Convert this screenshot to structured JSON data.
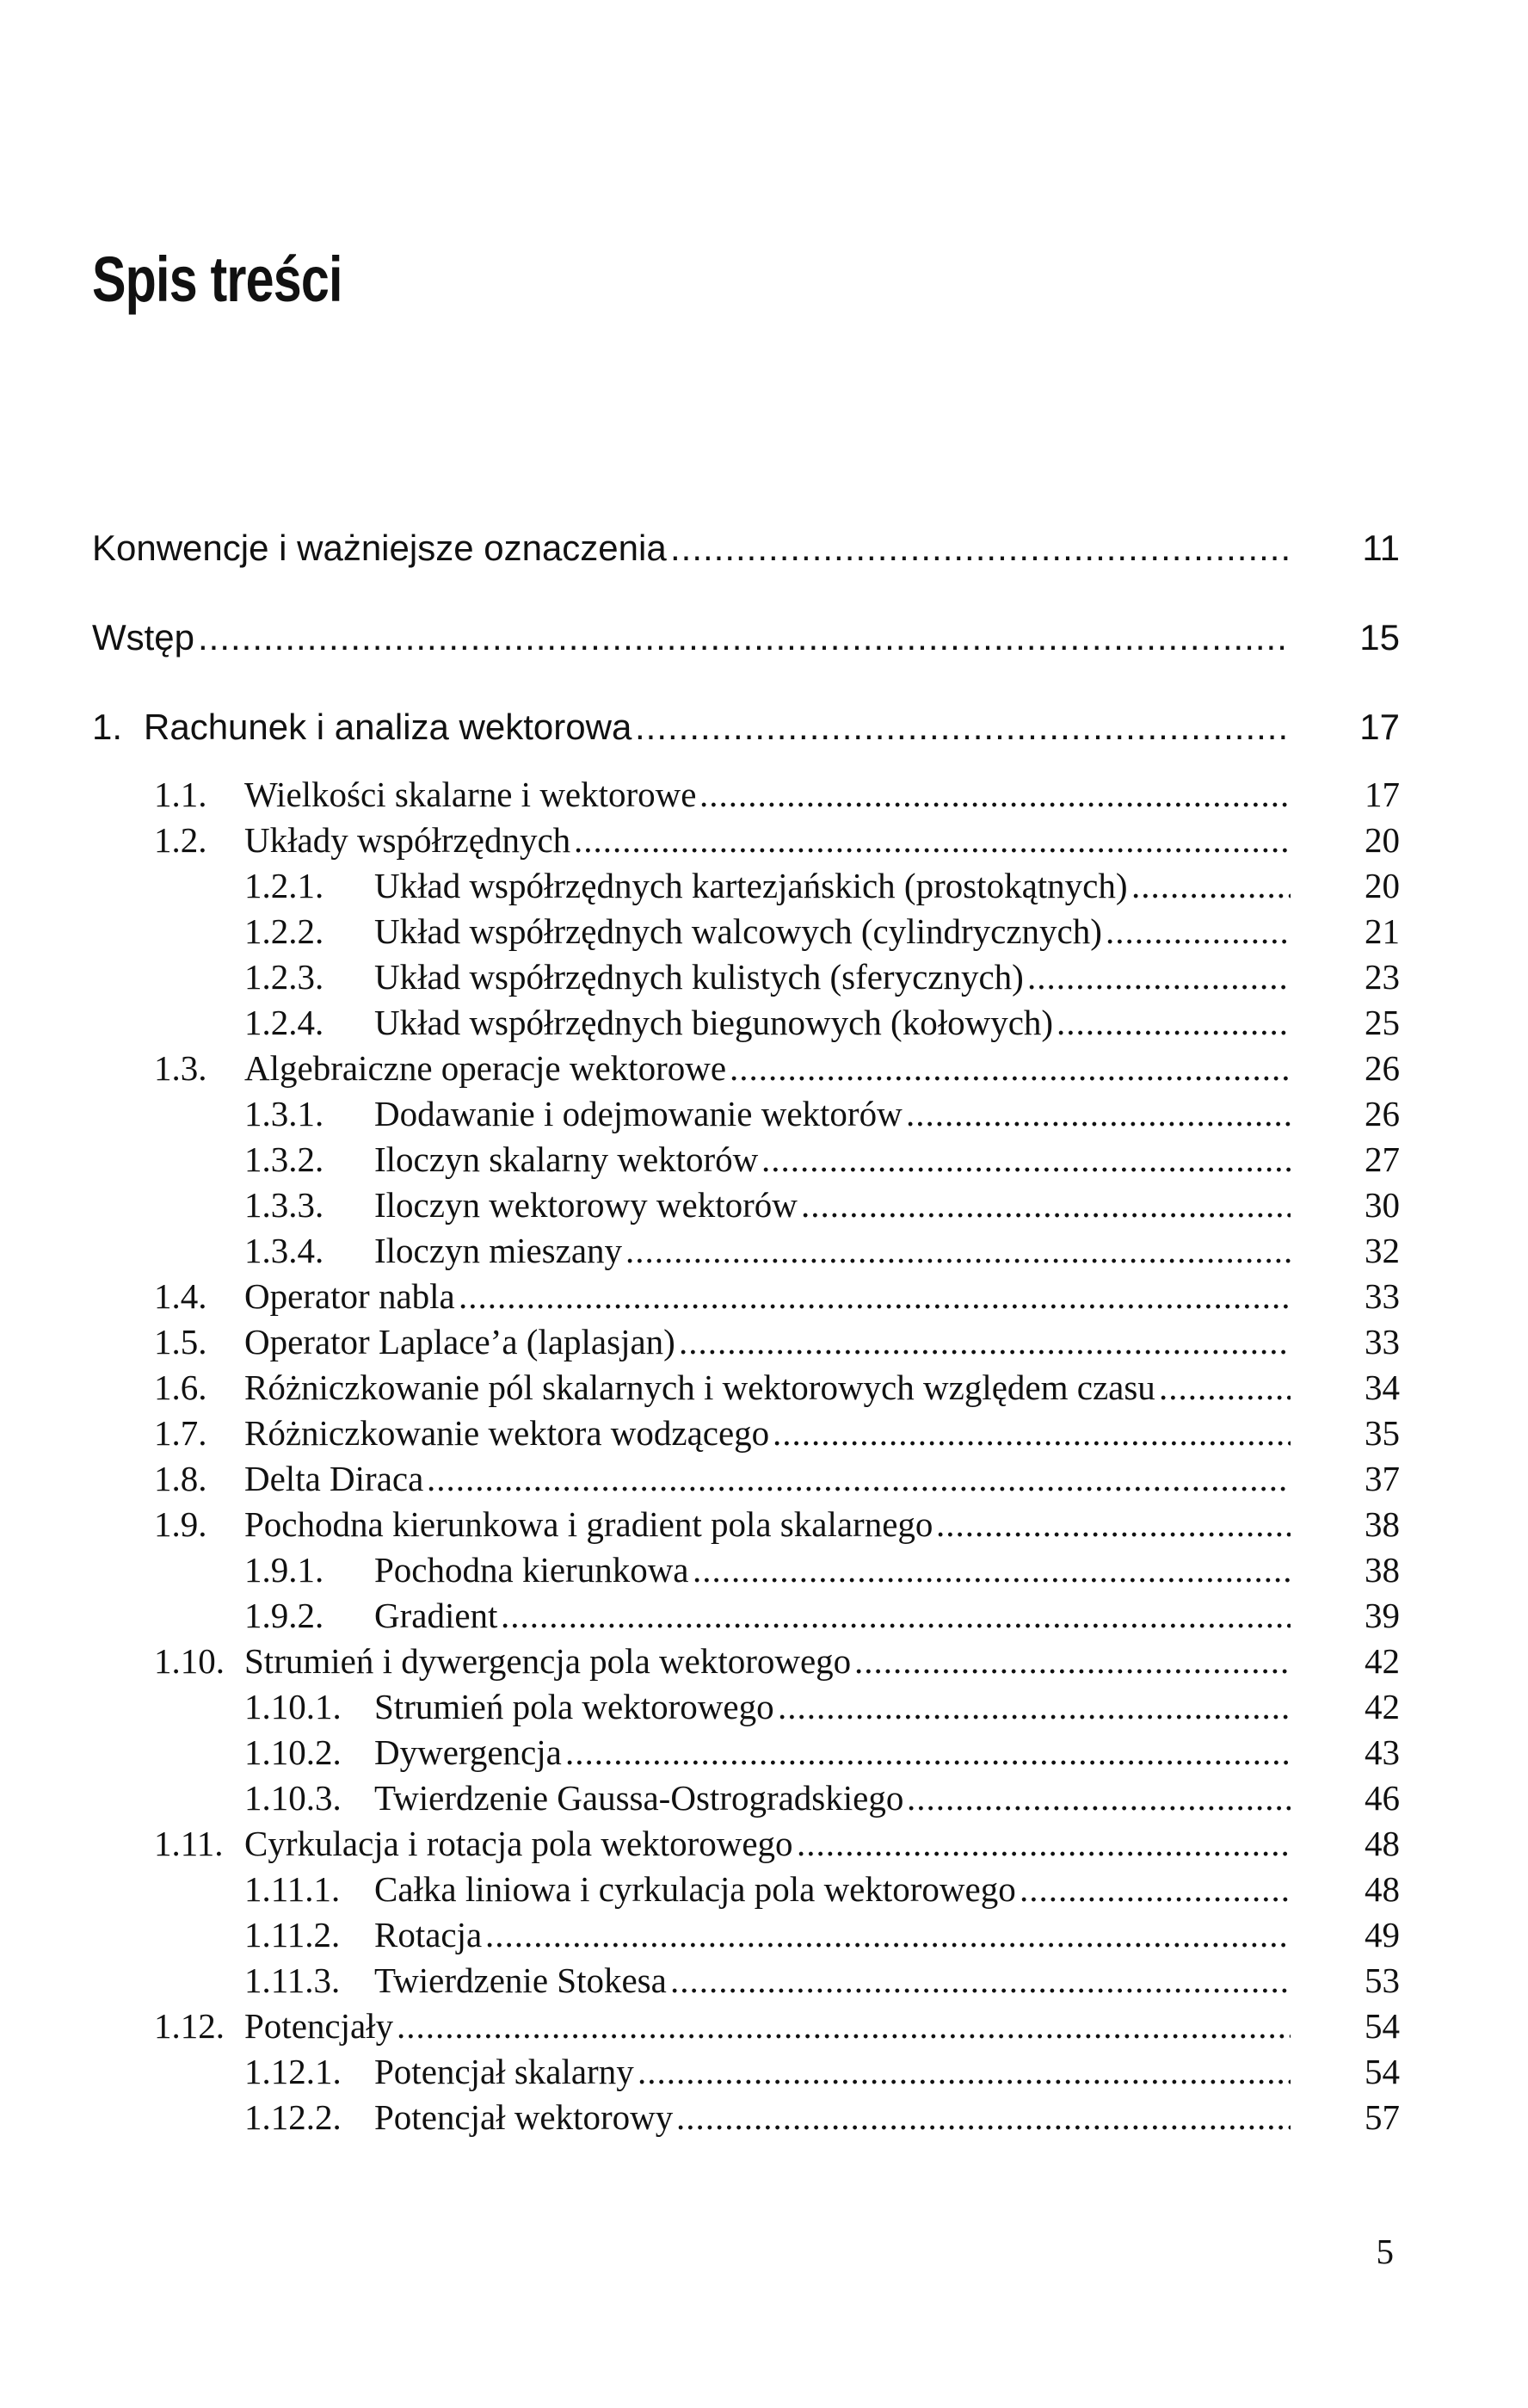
{
  "title": "Spis treści",
  "entries": [
    {
      "level": 0,
      "num": "",
      "title": "Konwencje i ważniejsze oznaczenia",
      "page": "11"
    },
    {
      "level": 0,
      "num": "",
      "title": "Wstęp",
      "page": "15"
    },
    {
      "level": 0,
      "num": "1.",
      "title": "Rachunek i analiza wektorowa",
      "page": "17"
    },
    {
      "level": 1,
      "num": "1.1.",
      "title": "Wielkości skalarne i wektorowe",
      "page": "17"
    },
    {
      "level": 1,
      "num": "1.2.",
      "title": "Układy współrzędnych",
      "page": "20"
    },
    {
      "level": 2,
      "num": "1.2.1.",
      "title": "Układ współrzędnych kartezjańskich (prostokątnych)",
      "page": "20"
    },
    {
      "level": 2,
      "num": "1.2.2.",
      "title": "Układ współrzędnych walcowych (cylindrycznych)",
      "page": "21"
    },
    {
      "level": 2,
      "num": "1.2.3.",
      "title": "Układ współrzędnych kulistych (sferycznych)",
      "page": "23"
    },
    {
      "level": 2,
      "num": "1.2.4.",
      "title": "Układ współrzędnych biegunowych (kołowych)",
      "page": "25"
    },
    {
      "level": 1,
      "num": "1.3.",
      "title": "Algebraiczne operacje wektorowe",
      "page": "26"
    },
    {
      "level": 2,
      "num": "1.3.1.",
      "title": "Dodawanie i odejmowanie wektorów",
      "page": "26"
    },
    {
      "level": 2,
      "num": "1.3.2.",
      "title": "Iloczyn skalarny wektorów",
      "page": "27"
    },
    {
      "level": 2,
      "num": "1.3.3.",
      "title": "Iloczyn wektorowy wektorów",
      "page": "30"
    },
    {
      "level": 2,
      "num": "1.3.4.",
      "title": "Iloczyn mieszany",
      "page": "32"
    },
    {
      "level": 1,
      "num": "1.4.",
      "title": "Operator nabla",
      "page": "33"
    },
    {
      "level": 1,
      "num": "1.5.",
      "title": "Operator Laplace’a (laplasjan)",
      "page": "33"
    },
    {
      "level": 1,
      "num": "1.6.",
      "title": "Różniczkowanie pól skalarnych i wektorowych względem czasu",
      "page": "34"
    },
    {
      "level": 1,
      "num": "1.7.",
      "title": "Różniczkowanie wektora wodzącego",
      "page": "35"
    },
    {
      "level": 1,
      "num": "1.8.",
      "title": "Delta Diraca",
      "page": "37"
    },
    {
      "level": 1,
      "num": "1.9.",
      "title": "Pochodna kierunkowa i gradient pola skalarnego",
      "page": "38"
    },
    {
      "level": 2,
      "num": "1.9.1.",
      "title": "Pochodna kierunkowa",
      "page": "38"
    },
    {
      "level": 2,
      "num": "1.9.2.",
      "title": "Gradient",
      "page": "39"
    },
    {
      "level": 1,
      "num": "1.10.",
      "title": "Strumień i dywergencja pola wektorowego",
      "page": "42"
    },
    {
      "level": 2,
      "num": "1.10.1.",
      "title": "Strumień pola wektorowego",
      "page": "42"
    },
    {
      "level": 2,
      "num": "1.10.2.",
      "title": "Dywergencja",
      "page": "43"
    },
    {
      "level": 2,
      "num": "1.10.3.",
      "title": "Twierdzenie Gaussa-Ostrogradskiego",
      "page": "46"
    },
    {
      "level": 1,
      "num": "1.11.",
      "title": "Cyrkulacja i rotacja pola wektorowego",
      "page": "48"
    },
    {
      "level": 2,
      "num": "1.11.1.",
      "title": "Całka liniowa i cyrkulacja pola wektorowego",
      "page": "48"
    },
    {
      "level": 2,
      "num": "1.11.2.",
      "title": "Rotacja",
      "page": "49"
    },
    {
      "level": 2,
      "num": "1.11.3.",
      "title": "Twierdzenie Stokesa",
      "page": "53"
    },
    {
      "level": 1,
      "num": "1.12.",
      "title": "Potencjały",
      "page": "54"
    },
    {
      "level": 2,
      "num": "1.12.1.",
      "title": "Potencjał skalarny",
      "page": "54"
    },
    {
      "level": 2,
      "num": "1.12.2.",
      "title": "Potencjał wektorowy",
      "page": "57"
    }
  ],
  "page_number": "5"
}
